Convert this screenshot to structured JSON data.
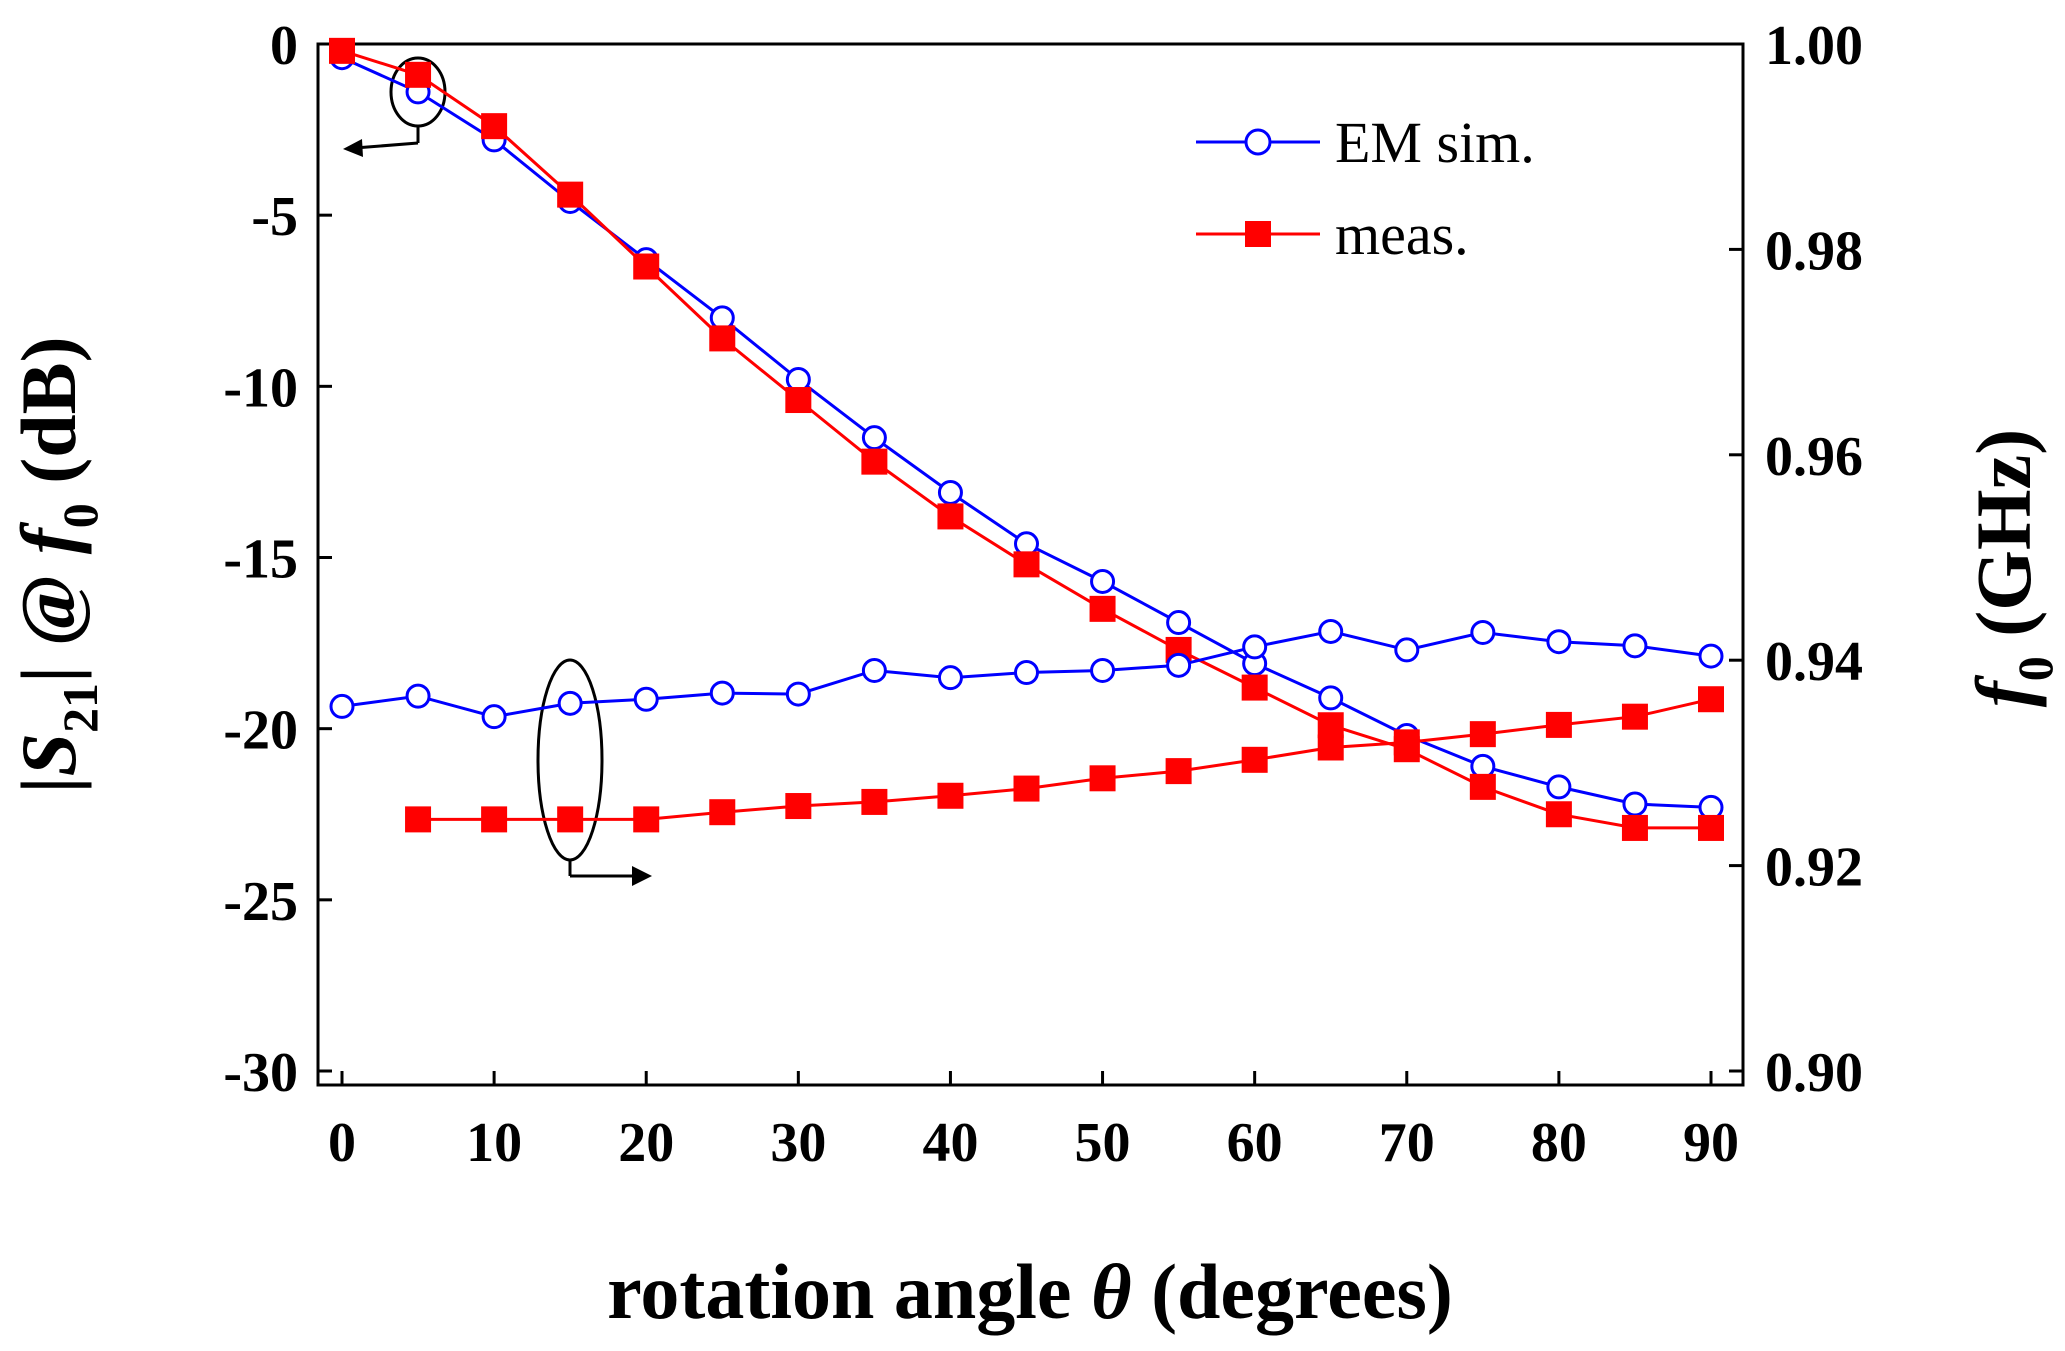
{
  "chart_data": {
    "type": "line",
    "xlabel_parts": [
      "rotation angle ",
      "θ",
      " (degrees)"
    ],
    "ylabel_left_parts": [
      "|S",
      "21",
      "| @ ",
      "f",
      "0",
      " (dB)"
    ],
    "ylabel_right_parts": [
      "f",
      "0",
      " (GHz)"
    ],
    "xlim": [
      0,
      90
    ],
    "ylim_left": [
      -30,
      0
    ],
    "ylim_right": [
      0.9,
      1.0
    ],
    "x_ticks": [
      0,
      10,
      20,
      30,
      40,
      50,
      60,
      70,
      80,
      90
    ],
    "x_tick_labels": [
      "0",
      "10",
      "20",
      "30",
      "40",
      "50",
      "60",
      "70",
      "80",
      "90"
    ],
    "y_left_ticks": [
      0,
      -5,
      -10,
      -15,
      -20,
      -25,
      -30
    ],
    "y_left_tick_labels": [
      "0",
      "-5",
      "-10",
      "-15",
      "-20",
      "-25",
      "-30"
    ],
    "y_right_ticks": [
      1.0,
      0.98,
      0.96,
      0.94,
      0.92,
      0.9
    ],
    "y_right_tick_labels": [
      "1.00",
      "0.98",
      "0.96",
      "0.94",
      "0.92",
      "0.90"
    ],
    "legend_position": "top-right",
    "grid": false,
    "series": [
      {
        "name": "EM sim.",
        "axis": "left",
        "color": "#0000ff",
        "marker": "open-circle",
        "x": [
          0,
          5,
          10,
          15,
          20,
          25,
          30,
          35,
          40,
          45,
          50,
          55,
          60,
          65,
          70,
          75,
          80,
          85,
          90
        ],
        "y": [
          -0.4,
          -1.4,
          -2.8,
          -4.6,
          -6.3,
          -8.0,
          -9.8,
          -11.5,
          -13.1,
          -14.6,
          -15.7,
          -16.9,
          -18.1,
          -19.1,
          -20.2,
          -21.1,
          -21.7,
          -22.2,
          -22.3
        ]
      },
      {
        "name": "meas.",
        "axis": "left",
        "color": "#ff0000",
        "marker": "filled-square",
        "x": [
          0,
          5,
          10,
          15,
          20,
          25,
          30,
          35,
          40,
          45,
          50,
          55,
          60,
          65,
          70,
          75,
          80,
          85,
          90
        ],
        "y": [
          -0.2,
          -0.9,
          -2.4,
          -4.4,
          -6.5,
          -8.6,
          -10.4,
          -12.2,
          -13.8,
          -15.2,
          -16.5,
          -17.7,
          -18.8,
          -19.9,
          -20.6,
          -21.7,
          -22.5,
          -22.9,
          -22.9
        ]
      },
      {
        "name": "EM sim.",
        "axis": "right",
        "color": "#0000ff",
        "marker": "open-circle",
        "x": [
          0,
          5,
          10,
          15,
          20,
          25,
          30,
          35,
          40,
          45,
          50,
          55,
          60,
          65,
          70,
          75,
          80,
          85,
          90
        ],
        "y": [
          0.9355,
          0.9365,
          0.9345,
          0.9358,
          0.9362,
          0.9368,
          0.9367,
          0.939,
          0.9383,
          0.9388,
          0.939,
          0.9395,
          0.9413,
          0.9428,
          0.941,
          0.9427,
          0.9418,
          0.9414,
          0.9404
        ]
      },
      {
        "name": "meas.",
        "axis": "right",
        "color": "#ff0000",
        "marker": "filled-square",
        "x": [
          5,
          10,
          15,
          20,
          25,
          30,
          35,
          40,
          45,
          50,
          55,
          60,
          65,
          70,
          75,
          80,
          85,
          90
        ],
        "y": [
          0.9245,
          0.9245,
          0.9245,
          0.9245,
          0.9252,
          0.9258,
          0.9262,
          0.9268,
          0.9275,
          0.9285,
          0.9292,
          0.9303,
          0.9315,
          0.932,
          0.9328,
          0.9337,
          0.9345,
          0.9362
        ]
      }
    ],
    "legend": [
      {
        "label": "EM sim.",
        "color": "#0000ff",
        "marker": "open-circle"
      },
      {
        "label": "meas.",
        "color": "#ff0000",
        "marker": "filled-square"
      }
    ]
  }
}
